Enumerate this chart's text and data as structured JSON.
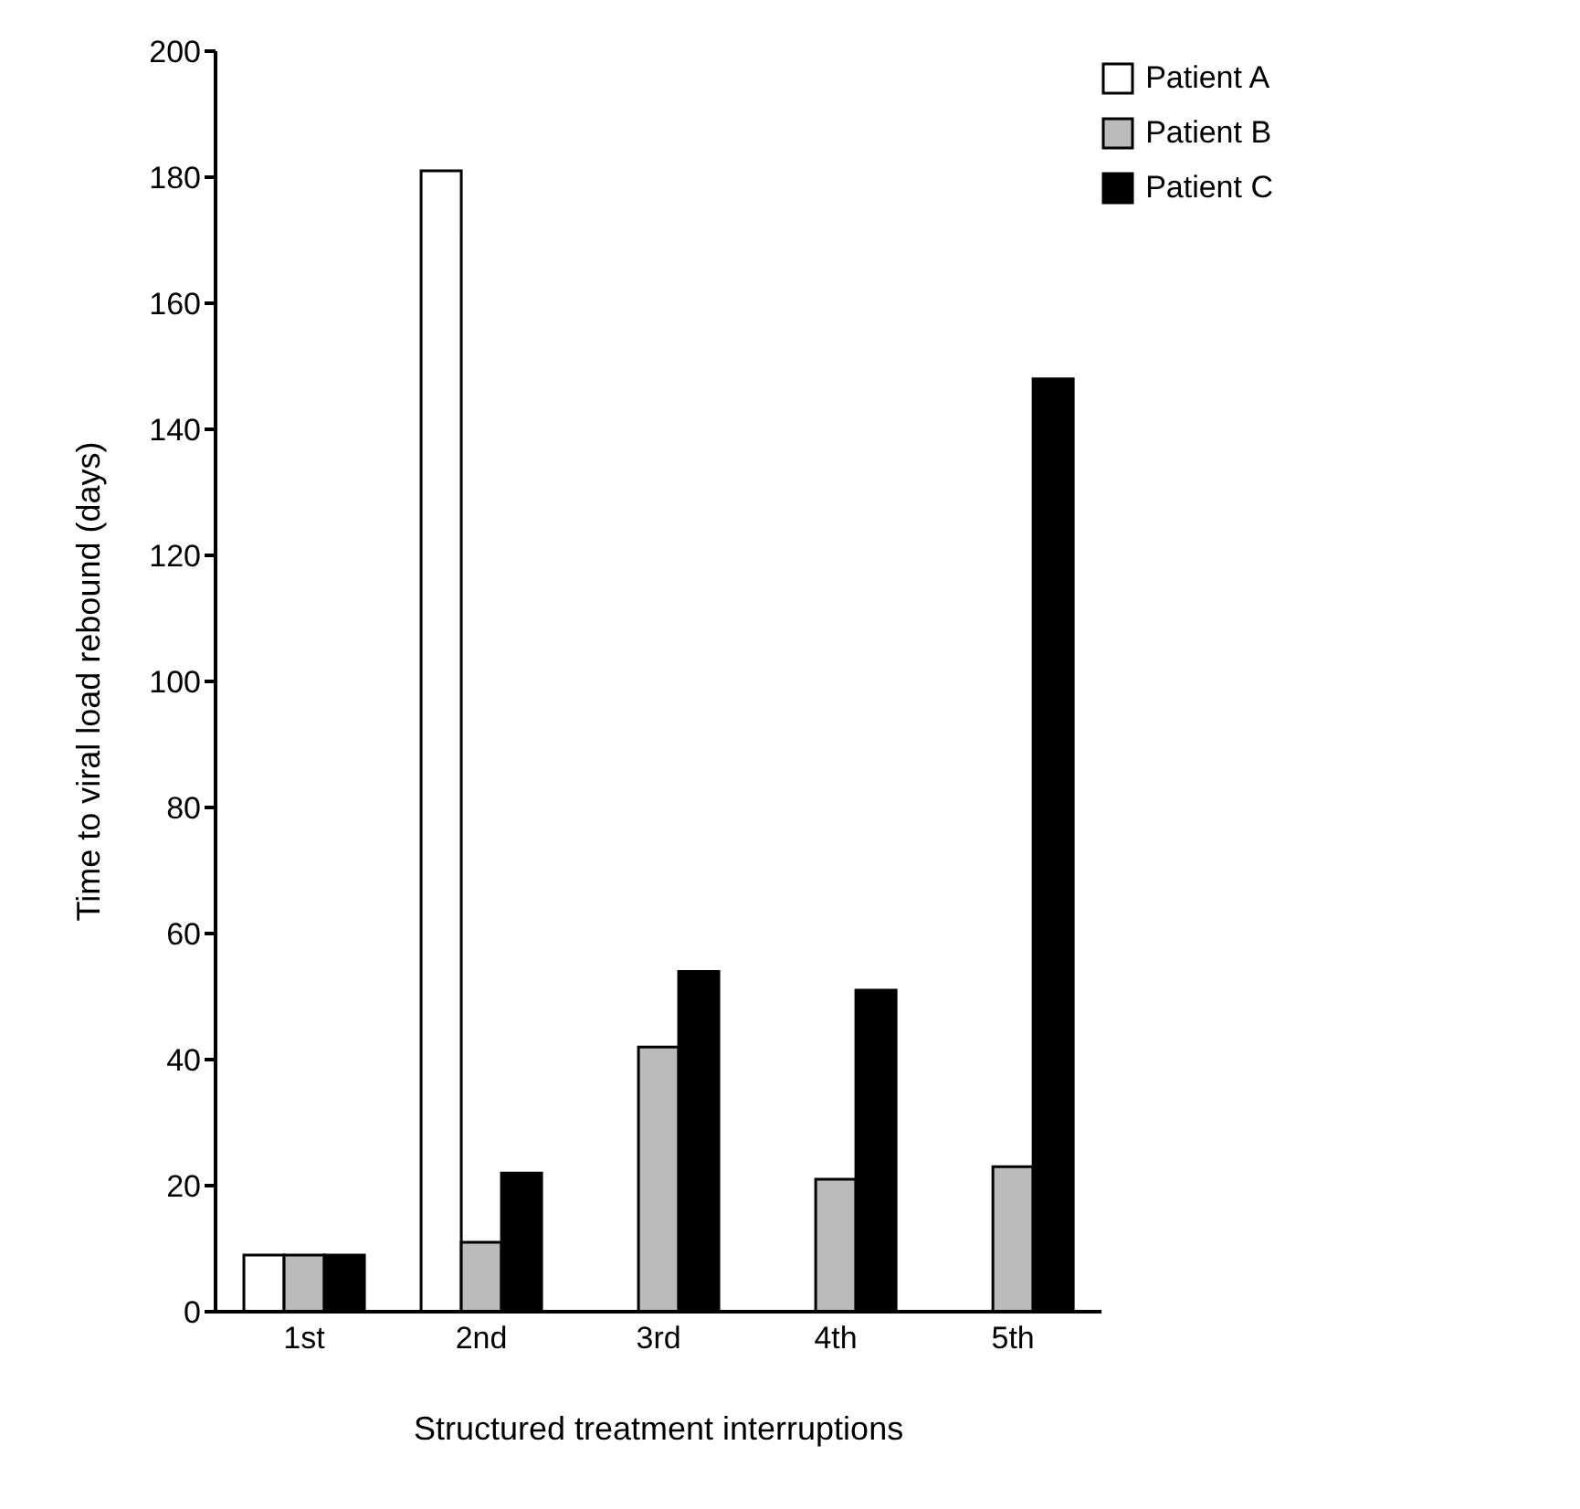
{
  "chart_data": {
    "type": "bar",
    "xlabel": "Structured treatment interruptions",
    "ylabel": "Time to viral load rebound (days)",
    "categories": [
      "1st",
      "2nd",
      "3rd",
      "4th",
      "5th"
    ],
    "series": [
      {
        "name": "Patient A",
        "color": "#ffffff",
        "values": [
          9,
          181,
          null,
          null,
          null
        ]
      },
      {
        "name": "Patient B",
        "color": "#bbbbbb",
        "values": [
          9,
          11,
          42,
          21,
          23
        ]
      },
      {
        "name": "Patient C",
        "color": "#000000",
        "values": [
          9,
          22,
          54,
          51,
          148
        ]
      }
    ],
    "ylim": [
      0,
      200
    ],
    "yticks": [
      0,
      20,
      40,
      60,
      80,
      100,
      120,
      140,
      160,
      180,
      200
    ],
    "grid": false,
    "legend": "top right"
  }
}
